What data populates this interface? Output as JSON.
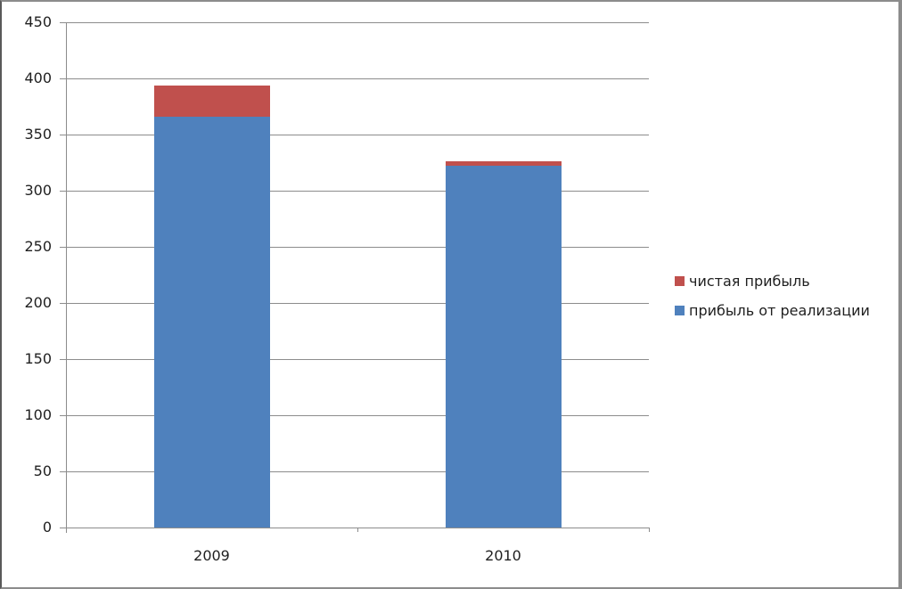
{
  "window": {
    "background": "#ffffff",
    "border_color": "#8C8C8C"
  },
  "chart_data": {
    "type": "bar",
    "variant": "stacked-column",
    "title": "",
    "categories": [
      "2009",
      "2010"
    ],
    "series": [
      {
        "name": "прибыль от реализации",
        "color": "#4F81BD",
        "values": [
          366,
          322
        ]
      },
      {
        "name": "чистая прибыль",
        "color": "#C0504D",
        "values": [
          28,
          4
        ]
      }
    ],
    "stacked_totals": [
      394,
      326
    ],
    "ylim": [
      0,
      450
    ],
    "yticks": [
      0,
      50,
      100,
      150,
      200,
      250,
      300,
      350,
      400,
      450
    ],
    "grid": true,
    "legend_position": "right",
    "legend": [
      {
        "label": "чистая прибыль",
        "color": "#C0504D"
      },
      {
        "label": "прибыль от реализации",
        "color": "#4F81BD"
      }
    ],
    "axis_color": "#8C8C8C",
    "gridline_color": "#8C8C8C",
    "text_color": "#1f1f1f"
  }
}
